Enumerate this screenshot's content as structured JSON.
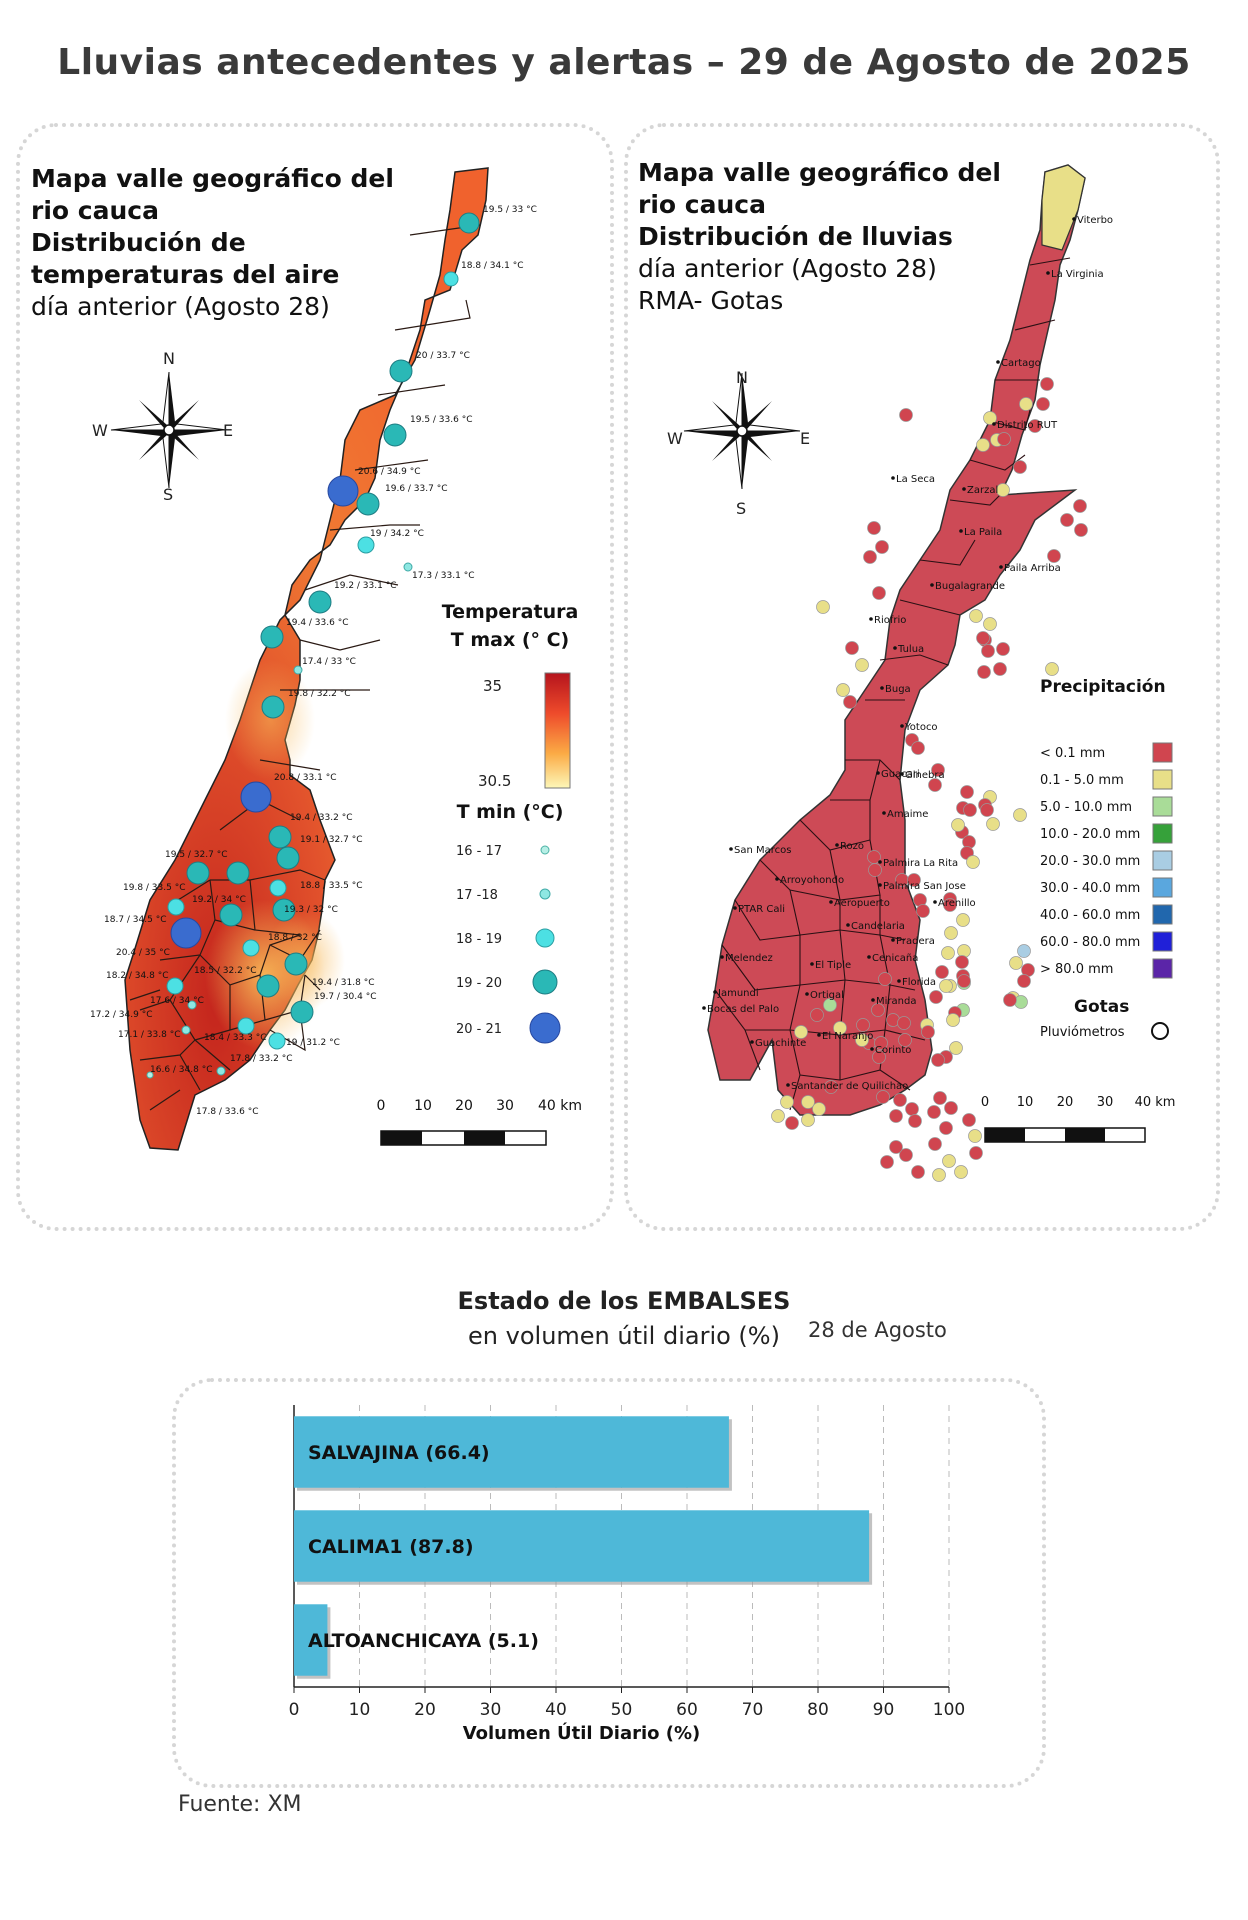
{
  "page": {
    "title": "Lluvias antecedentes y alertas – 29 de Agosto de 2025"
  },
  "temp_map": {
    "title_lines_bold": [
      "Mapa valle geográfico del",
      "rio cauca",
      "Distribución de",
      "temperaturas del aire"
    ],
    "subtitle": "día anterior (Agosto 28)",
    "compass": {
      "n": "N",
      "s": "S",
      "e": "E",
      "w": "W"
    },
    "legend_title_1": "Temperatura",
    "legend_title_2": "T max (° C)",
    "legend_max": "35",
    "legend_min": "30.5",
    "tmin_title": "T min (°C)",
    "tmin_classes": [
      "16 - 17",
      "17 -18",
      "18 - 19",
      "19 - 20",
      "20 - 21"
    ],
    "scale_labels": [
      "0",
      "10",
      "20",
      "30",
      "40 km"
    ],
    "station_labels": [
      "19.5 / 33 °C",
      "18.8 / 34.1 °C",
      "20 / 33.7 °C",
      "19.5 / 33.6 °C",
      "20.6 / 34.9 °C",
      "19.6 / 33.7 °C",
      "19 / 34.2 °C",
      "17.3 / 33.1 °C",
      "19.2 / 33.1 °C",
      "19.4 / 33.6 °C",
      "17.4 / 33 °C",
      "19.8 / 32.2 °C",
      "20.8 / 33.1 °C",
      "19.4 / 33.2 °C",
      "19.1 / 32.7 °C",
      "19.5 / 32.7 °C",
      "18.8 / 33.5 °C",
      "19.8 / 33.5 °C",
      "19.2 / 34 °C",
      "19.3 / 32 °C",
      "18.7 / 34.5 °C",
      "18.8 / 32 °C",
      "20.4 / 35 °C",
      "18.5 / 32.2 °C",
      "18.2 / 34.8 °C",
      "19.4 / 31.8 °C",
      "19.7 / 30.4 °C",
      "17.6 / 34 °C",
      "17.2 / 34.9 °C",
      "17.1 / 33.8 °C",
      "18.4 / 33.3 °C",
      "19 / 31.2 °C",
      "17.8 / 33.2 °C",
      "16.6 / 34.8 °C",
      "17.8 / 33.6 °C"
    ]
  },
  "rain_map": {
    "title_lines": [
      "Mapa valle geográfico del",
      "rio cauca"
    ],
    "title_bold": "Distribución de lluvias",
    "subtitle_1": "día anterior (Agosto 28)",
    "subtitle_2": "RMA- Gotas",
    "compass": {
      "n": "N",
      "s": "S",
      "e": "E",
      "w": "W"
    },
    "legend_title": "Precipitación",
    "classes": [
      {
        "label": "< 0.1 mm",
        "color": "#d0454f"
      },
      {
        "label": "0.1 - 5.0 mm",
        "color": "#e8df88"
      },
      {
        "label": "5.0 - 10.0 mm",
        "color": "#a9dc98"
      },
      {
        "label": "10.0 - 20.0 mm",
        "color": "#36a13a"
      },
      {
        "label": "20.0 - 30.0 mm",
        "color": "#a9cde3"
      },
      {
        "label": "30.0 - 40.0 mm",
        "color": "#5aa7de"
      },
      {
        "label": "40.0 - 60.0 mm",
        "color": "#2167ad"
      },
      {
        "label": "60.0 - 80.0 mm",
        "color": "#2020d8"
      },
      {
        "label": "> 80.0 mm",
        "color": "#5b25a8"
      }
    ],
    "gotas_title": "Gotas",
    "gotas_item": "Pluviómetros",
    "scale_labels": [
      "0",
      "10",
      "20",
      "30",
      "40 km"
    ],
    "places": [
      "Viterbo",
      "La Virginia",
      "Cartago",
      "Distrito RUT",
      "La Seca",
      "Zarzal",
      "La Paila",
      "Paila Arriba",
      "Bugalagrande",
      "Riofrio",
      "Tulua",
      "Buga",
      "Yotoco",
      "Guacari",
      "Ginebra",
      "Amaime",
      "San Marcos",
      "Rozo",
      "Palmira La Rita",
      "Arroyohondo",
      "Palmira San Jose",
      "Aeropuerto",
      "Arenillo",
      "PTAR Cali",
      "Candelaria",
      "Pradera",
      "Cenicaña",
      "Melendez",
      "El Tiple",
      "Florida",
      "Jamundi",
      "Bocas del Palo",
      "Ortigal",
      "Miranda",
      "El Naranjo",
      "Guachinte",
      "Corinto",
      "Santander de Quilichao"
    ]
  },
  "reservoir_chart": {
    "title_bold": "Estado de los EMBALSES",
    "title_normal": "en volumen útil diario (%)",
    "date": "28 de Agosto",
    "source": "Fuente: XM",
    "chart_data": {
      "type": "bar",
      "orientation": "horizontal",
      "categories": [
        "SALVAJINA",
        "CALIMA1",
        "ALTOANCHICAYA"
      ],
      "values": [
        66.4,
        87.8,
        5.1
      ],
      "bar_labels": [
        "SALVAJINA (66.4)",
        "CALIMA1 (87.8)",
        "ALTOANCHICAYA (5.1)"
      ],
      "xlabel": "Volumen Útil Diario (%)",
      "xlim": [
        0,
        100
      ],
      "xticks": [
        "0",
        "10",
        "20",
        "30",
        "40",
        "50",
        "60",
        "70",
        "80",
        "90",
        "100"
      ],
      "grid": "vertical dashed",
      "bar_color": "#4eb8d8"
    }
  }
}
